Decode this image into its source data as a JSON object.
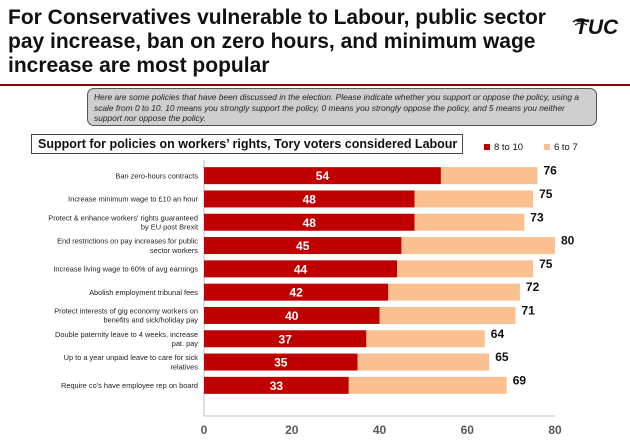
{
  "title": "For Conservatives vulnerable to Labour, public sector pay increase, ban on zero hours, and minimum wage increase are most popular",
  "logo_text": "TUC",
  "question": "Here are some policies that have been discussed in the election. Please indicate whether you support or oppose the policy, using a scale from 0 to 10. 10 means you strongly support the policy, 0 means you strongly oppose the policy, and 5 means you neither support nor oppose the policy.",
  "colors": {
    "accent": "#c00000",
    "secondary": "#fac08f",
    "rule": "#8b0000"
  },
  "chart_data": {
    "type": "bar",
    "orientation": "horizontal",
    "stacked": true,
    "title": "Support for policies on workers’ rights, Tory voters considered Labour",
    "categories": [
      "Ban zero-hours contracts",
      "Increase minimum wage to £10 an hour",
      "Protect & enhance workers' rights guaranteed by EU post Brexit",
      "End restrictions on pay increases for public sector workers",
      "Increase living wage to 60% of avg earnings",
      "Abolish employment tribunal fees",
      "Protect interests of gig economy workers on benefits and sick/holiday pay",
      "Double paternity leave to 4 weeks, increase pat. pay",
      "Up to a year unpaid leave to care for sick relatives",
      "Require co's have employee rep on board"
    ],
    "series": [
      {
        "name": "8 to 10",
        "values": [
          54,
          48,
          48,
          45,
          44,
          42,
          40,
          37,
          35,
          33
        ],
        "color": "#c00000"
      },
      {
        "name": "6 to 7",
        "values": [
          22,
          27,
          25,
          35,
          31,
          30,
          31,
          27,
          30,
          36
        ],
        "color": "#fac08f"
      }
    ],
    "totals": [
      76,
      75,
      73,
      80,
      75,
      72,
      71,
      64,
      65,
      69
    ],
    "xlim": [
      0,
      80
    ],
    "xticks": [
      "0",
      "20",
      "40",
      "60",
      "80"
    ],
    "legend_position": "top-right",
    "grid": false
  }
}
